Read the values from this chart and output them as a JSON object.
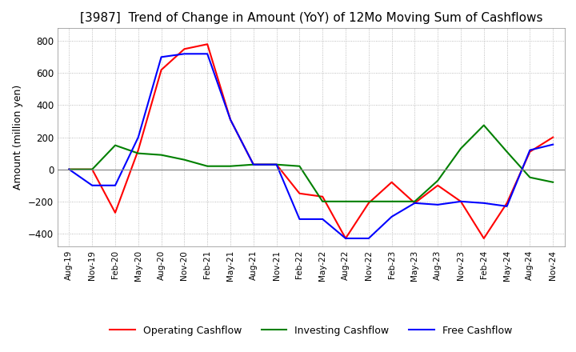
{
  "title": "[3987]  Trend of Change in Amount (YoY) of 12Mo Moving Sum of Cashflows",
  "ylabel": "Amount (million yen)",
  "ylim": [
    -480,
    880
  ],
  "yticks": [
    -400,
    -200,
    0,
    200,
    400,
    600,
    800
  ],
  "x_labels": [
    "Aug-19",
    "Nov-19",
    "Feb-20",
    "May-20",
    "Aug-20",
    "Nov-20",
    "Feb-21",
    "May-21",
    "Aug-21",
    "Nov-21",
    "Feb-22",
    "May-22",
    "Aug-22",
    "Nov-22",
    "Feb-23",
    "May-23",
    "Aug-23",
    "Nov-23",
    "Feb-24",
    "May-24",
    "Aug-24",
    "Nov-24"
  ],
  "operating": [
    0,
    0,
    -270,
    120,
    620,
    750,
    780,
    310,
    30,
    30,
    -150,
    -170,
    -430,
    -210,
    -80,
    -210,
    -100,
    -200,
    -430,
    -210,
    110,
    200
  ],
  "investing": [
    0,
    0,
    150,
    100,
    90,
    60,
    20,
    20,
    30,
    30,
    20,
    -200,
    -200,
    -200,
    -200,
    -200,
    -70,
    130,
    275,
    110,
    -50,
    -80
  ],
  "free": [
    0,
    -100,
    -100,
    200,
    700,
    720,
    720,
    310,
    30,
    30,
    -310,
    -310,
    -430,
    -430,
    -295,
    -210,
    -220,
    -200,
    -210,
    -230,
    120,
    155
  ],
  "line_colors": {
    "operating": "#ff0000",
    "investing": "#008000",
    "free": "#0000ff"
  },
  "line_width": 1.5,
  "legend_labels": [
    "Operating Cashflow",
    "Investing Cashflow",
    "Free Cashflow"
  ],
  "background_color": "#ffffff",
  "grid_color": "#aaaaaa",
  "zero_line_color": "#888888",
  "title_fontsize": 11,
  "title_fontweight": "normal"
}
